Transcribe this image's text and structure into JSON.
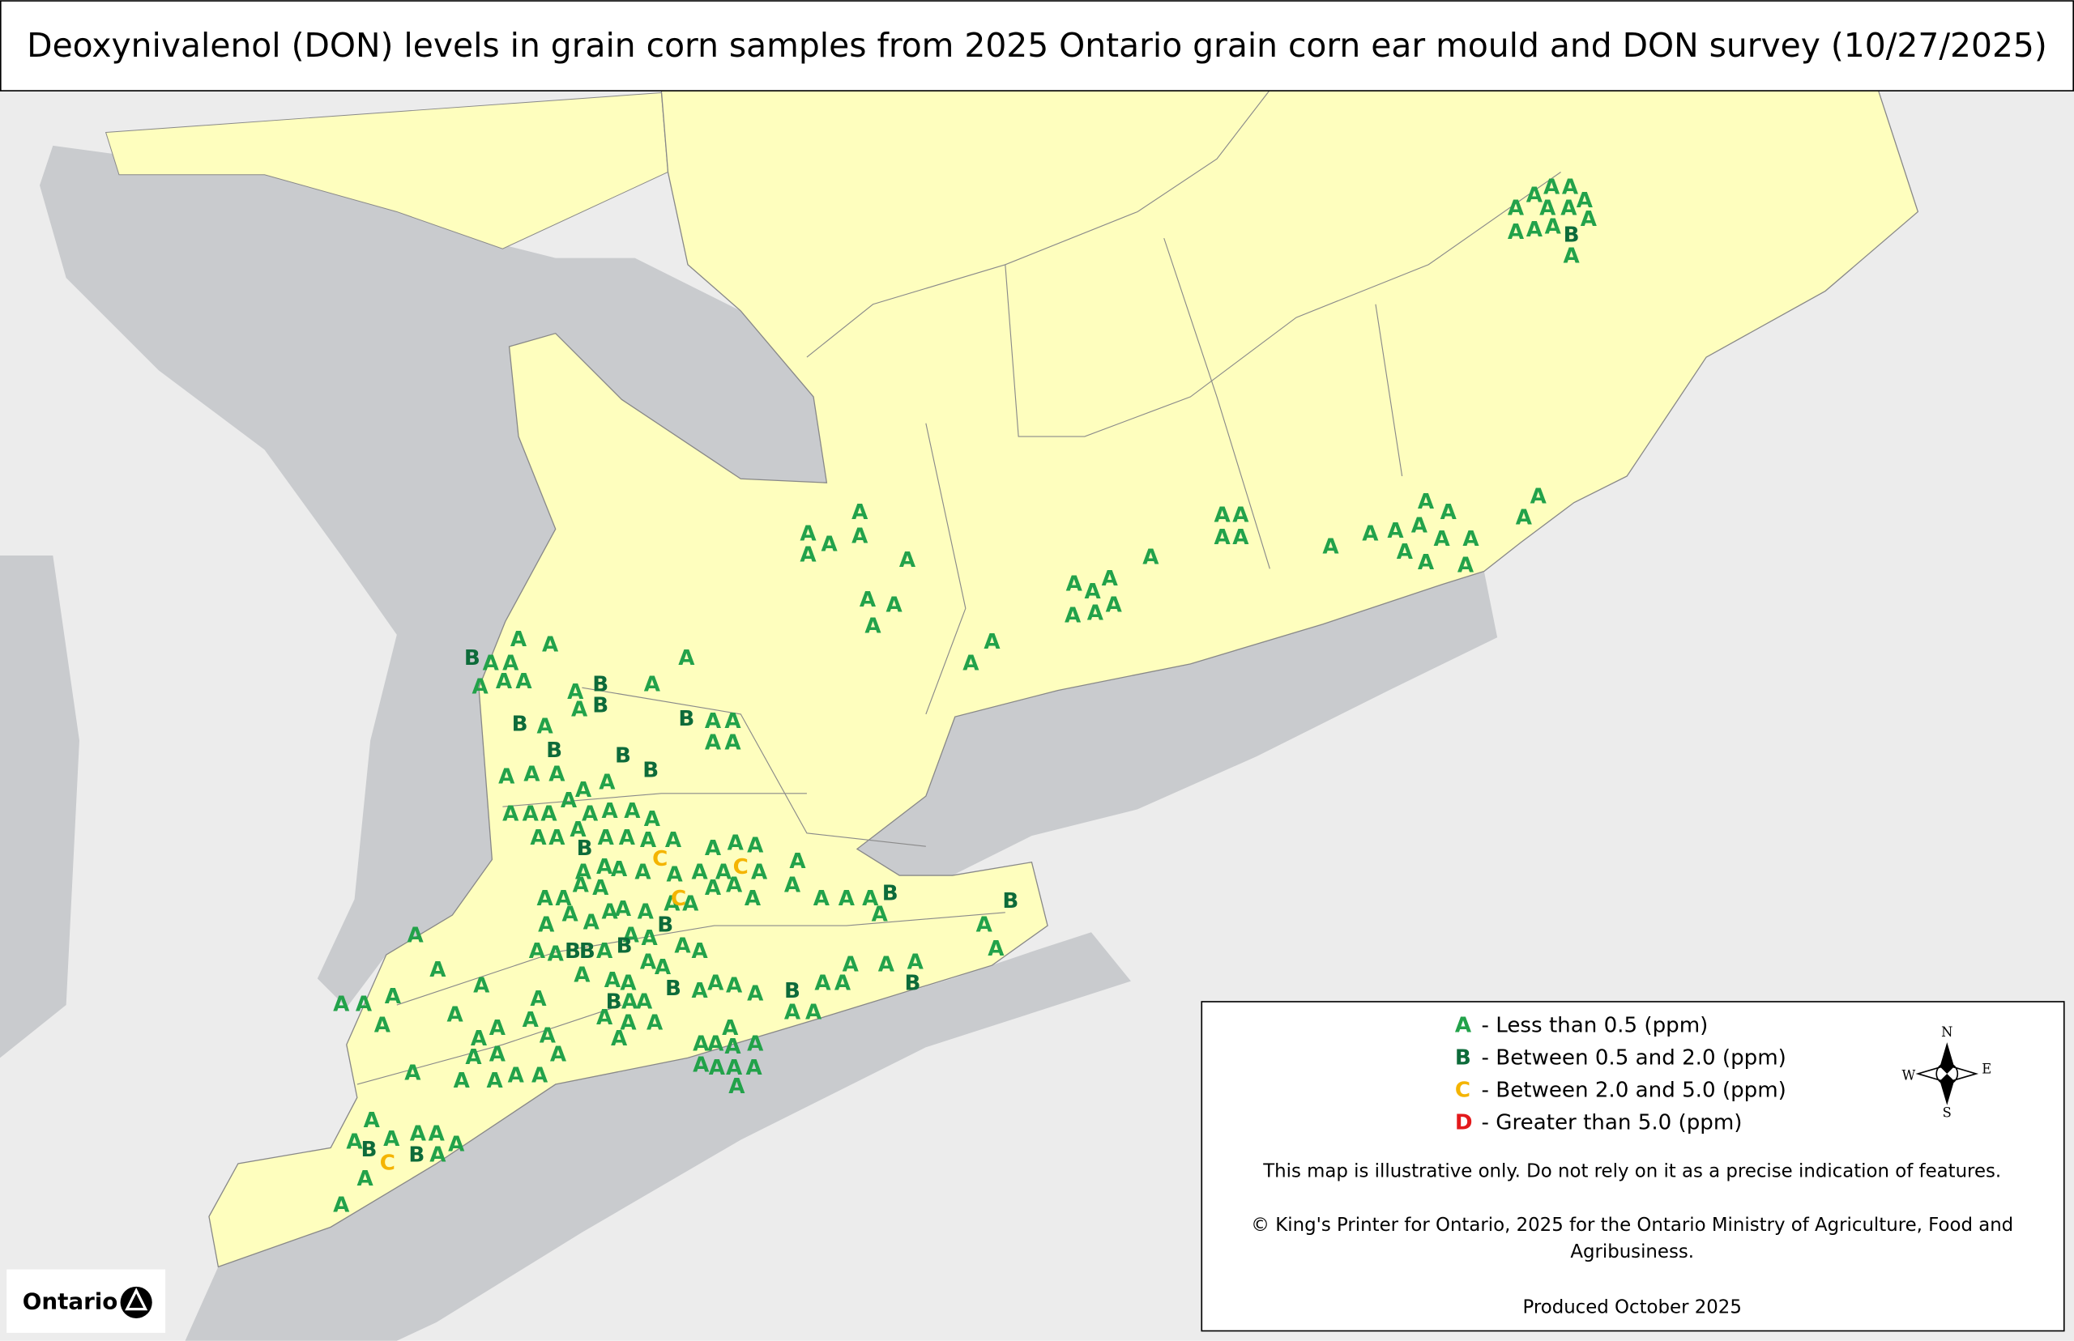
{
  "title": "Deoxynivalenol (DON) levels in grain corn samples from 2025 Ontario grain corn ear mould and DON survey (10/27/2025)",
  "marker_colors": {
    "A": "#22a24a",
    "B": "#0d6b3a",
    "C": "#f4b400",
    "D": "#e31a1c"
  },
  "markers": [
    "A",
    "A",
    "A",
    "A",
    "A",
    "A",
    "A",
    "A",
    "A",
    "A",
    "A",
    "B",
    "A",
    "A",
    "A",
    "A",
    "A",
    "A",
    "A",
    "A",
    "A",
    "A",
    "A",
    "A",
    "A",
    "A",
    "A",
    "A",
    "A",
    "A",
    "A",
    "A",
    "A",
    "A",
    "A",
    "A",
    "A",
    "A",
    "A",
    "A",
    "A",
    "A",
    "A",
    "A",
    "A",
    "A",
    "A",
    "A",
    "A",
    "A",
    "B",
    "A",
    "A",
    "A",
    "A",
    "A",
    "A",
    "A",
    "A",
    "B",
    "B",
    "A",
    "B",
    "B",
    "A",
    "B",
    "A",
    "A",
    "A",
    "A",
    "B",
    "B",
    "A",
    "A",
    "A",
    "A",
    "A",
    "A",
    "A",
    "A",
    "A",
    "A",
    "A",
    "A",
    "A",
    "A",
    "A",
    "A",
    "A",
    "A",
    "A",
    "A",
    "B",
    "A",
    "A",
    "A",
    "C",
    "C",
    "A",
    "A",
    "A",
    "A",
    "A",
    "A",
    "A",
    "A",
    "A",
    "A",
    "A",
    "A",
    "A",
    "A",
    "A",
    "A",
    "A",
    "A",
    "A",
    "A",
    "C",
    "A",
    "A",
    "A",
    "A",
    "B",
    "B",
    "A",
    "A",
    "A",
    "A",
    "A",
    "A",
    "A",
    "A",
    "A",
    "B",
    "B",
    "A",
    "B",
    "A",
    "B",
    "A",
    "A",
    "A",
    "A",
    "A",
    "A",
    "A",
    "B",
    "B",
    "A",
    "A",
    "A",
    "A",
    "A",
    "A",
    "A",
    "A",
    "A",
    "A",
    "A",
    "A",
    "A",
    "A",
    "A",
    "A",
    "A",
    "A",
    "A",
    "B",
    "A",
    "A",
    "A",
    "A",
    "A",
    "A",
    "A",
    "B",
    "A",
    "A",
    "A",
    "A",
    "A",
    "A",
    "A",
    "A",
    "A",
    "A",
    "A",
    "A",
    "A",
    "A",
    "A",
    "A",
    "A",
    "A",
    "A",
    "A",
    "A",
    "A",
    "A",
    "A",
    "A",
    "A",
    "A",
    "A",
    "B",
    "A",
    "C",
    "B",
    "A",
    "A",
    "A"
  ],
  "legend": {
    "items": [
      {
        "grade": "A",
        "text": "- Less than 0.5 (ppm)"
      },
      {
        "grade": "B",
        "text": "- Between 0.5 and 2.0 (ppm)"
      },
      {
        "grade": "C",
        "text": "- Between 2.0 and 5.0 (ppm)"
      },
      {
        "grade": "D",
        "text": "- Greater than 5.0 (ppm)"
      }
    ],
    "note": "This map is illustrative only.  Do not rely on it as a precise indication of features.",
    "copyright": [
      "© King's Printer for Ontario, 2025 for the Ontario Ministry of Agriculture, Food and",
      "Agribusiness."
    ],
    "produced": "Produced October 2025"
  },
  "compass": {
    "n": "N",
    "e": "E",
    "s": "S",
    "w": "W"
  },
  "logo": "Ontario"
}
